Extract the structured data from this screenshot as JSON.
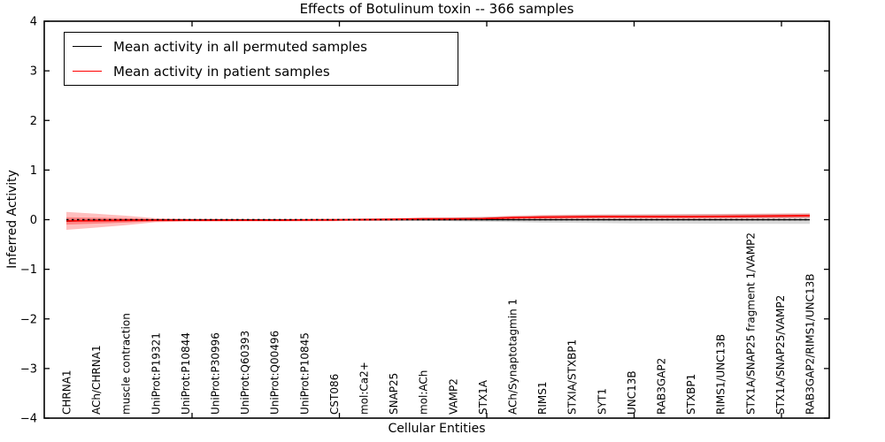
{
  "chart_data": {
    "type": "line",
    "title": "Effects of Botulinum toxin -- 366 samples",
    "xlabel": "Cellular Entities",
    "ylabel": "Inferred Activity",
    "ylim": [
      -4,
      4
    ],
    "ytick_labels": [
      "4",
      "3",
      "2",
      "1",
      "0",
      "−1",
      "−2",
      "−3",
      "−4"
    ],
    "ytick_values": [
      4,
      3,
      2,
      1,
      0,
      -1,
      -2,
      -3,
      -4
    ],
    "grid": false,
    "legend": {
      "position": "upper left",
      "entries": [
        {
          "label": "Mean activity in all permuted samples",
          "color": "#000000"
        },
        {
          "label": "Mean activity in patient samples",
          "color": "#ff0000"
        }
      ]
    },
    "categories": [
      "CHRNA1",
      "ACh/CHRNA1",
      "muscle contraction",
      "UniProt:P19321",
      "UniProt:P10844",
      "UniProt:P30996",
      "UniProt:Q60393",
      "UniProt:Q00496",
      "UniProt:P10845",
      "CST086",
      "mol:Ca2+",
      "SNAP25",
      "mol:ACh",
      "VAMP2",
      "STX1A",
      "ACh/Synaptotagmin 1",
      "RIMS1",
      "STXIA/STXBP1",
      "SYT1",
      "UNC13B",
      "RAB3GAP2",
      "STXBP1",
      "RIMS1/UNC13B",
      "STX1A/SNAP25 fragment 1/VAMP2",
      "STX1A/SNAP25/VAMP2",
      "RAB3GAP2/RIMS1/UNC13B"
    ],
    "series": [
      {
        "name": "Mean activity in all permuted samples",
        "color": "#000000",
        "style": "solid",
        "width": 1.3,
        "values": [
          -0.03,
          -0.012,
          -0.005,
          -0.003,
          -0.002,
          -0.002,
          -0.002,
          -0.002,
          -0.002,
          -0.002,
          -0.002,
          -0.002,
          -0.002,
          -0.002,
          -0.002,
          -0.002,
          -0.002,
          -0.002,
          -0.002,
          -0.002,
          -0.002,
          -0.002,
          -0.002,
          -0.002,
          -0.002,
          -0.002
        ]
      },
      {
        "name": "Mean activity in patient samples",
        "color": "#ff0000",
        "style": "solid",
        "width": 1.8,
        "values": [
          -0.025,
          -0.02,
          -0.015,
          -0.012,
          -0.01,
          -0.01,
          -0.01,
          -0.01,
          -0.008,
          -0.005,
          0.0,
          0.005,
          0.015,
          0.015,
          0.02,
          0.04,
          0.05,
          0.055,
          0.06,
          0.06,
          0.06,
          0.06,
          0.065,
          0.07,
          0.075,
          0.08
        ]
      }
    ],
    "reference_line": {
      "y": 0,
      "style": "dotted",
      "color": "#000000"
    },
    "bands": [
      {
        "name": "permuted-samples-range",
        "color": "#a8a8a8",
        "opacity": 0.45,
        "hi": [
          0.012,
          0.012,
          0.012,
          0.012,
          0.012,
          0.012,
          0.012,
          0.012,
          0.012,
          0.015,
          0.02,
          0.025,
          0.032,
          0.042,
          0.055,
          0.07,
          0.085,
          0.095,
          0.1,
          0.105,
          0.108,
          0.11,
          0.112,
          0.115,
          0.118,
          0.12
        ],
        "lo": [
          -0.012,
          -0.012,
          -0.012,
          -0.012,
          -0.012,
          -0.012,
          -0.012,
          -0.012,
          -0.012,
          -0.014,
          -0.016,
          -0.018,
          -0.022,
          -0.03,
          -0.04,
          -0.05,
          -0.06,
          -0.065,
          -0.07,
          -0.075,
          -0.078,
          -0.08,
          -0.082,
          -0.083,
          -0.084,
          -0.085
        ]
      },
      {
        "name": "patient-band-outer",
        "color": "#ff0000",
        "opacity": 0.25,
        "hi": [
          0.155,
          0.12,
          0.08,
          0.028,
          0.02,
          0.017,
          0.015,
          0.015,
          0.017,
          0.02,
          0.025,
          0.032,
          0.045,
          0.045,
          0.053,
          0.08,
          0.092,
          0.1,
          0.105,
          0.105,
          0.107,
          0.11,
          0.115,
          0.12,
          0.125,
          0.13
        ],
        "lo": [
          -0.205,
          -0.16,
          -0.11,
          -0.052,
          -0.04,
          -0.037,
          -0.035,
          -0.035,
          -0.033,
          -0.03,
          -0.025,
          -0.022,
          -0.015,
          -0.015,
          -0.013,
          0.0,
          0.008,
          0.01,
          0.015,
          0.015,
          0.013,
          0.01,
          0.015,
          0.02,
          0.025,
          0.03
        ],
        "note": ""
      },
      {
        "name": "patient-band-inner",
        "color": "#ff0000",
        "opacity": 0.3,
        "hi": [
          0.05,
          0.04,
          0.03,
          0.01,
          0.006,
          0.004,
          0.003,
          0.002,
          0.004,
          0.007,
          0.012,
          0.018,
          0.029,
          0.029,
          0.035,
          0.056,
          0.067,
          0.073,
          0.078,
          0.078,
          0.079,
          0.08,
          0.085,
          0.09,
          0.095,
          0.1
        ],
        "lo": [
          -0.1,
          -0.08,
          -0.06,
          -0.034,
          -0.026,
          -0.024,
          -0.023,
          -0.022,
          -0.02,
          -0.017,
          -0.012,
          -0.008,
          0.001,
          0.001,
          0.005,
          0.024,
          0.033,
          0.037,
          0.042,
          0.042,
          0.041,
          0.04,
          0.045,
          0.05,
          0.055,
          0.06
        ]
      }
    ]
  }
}
